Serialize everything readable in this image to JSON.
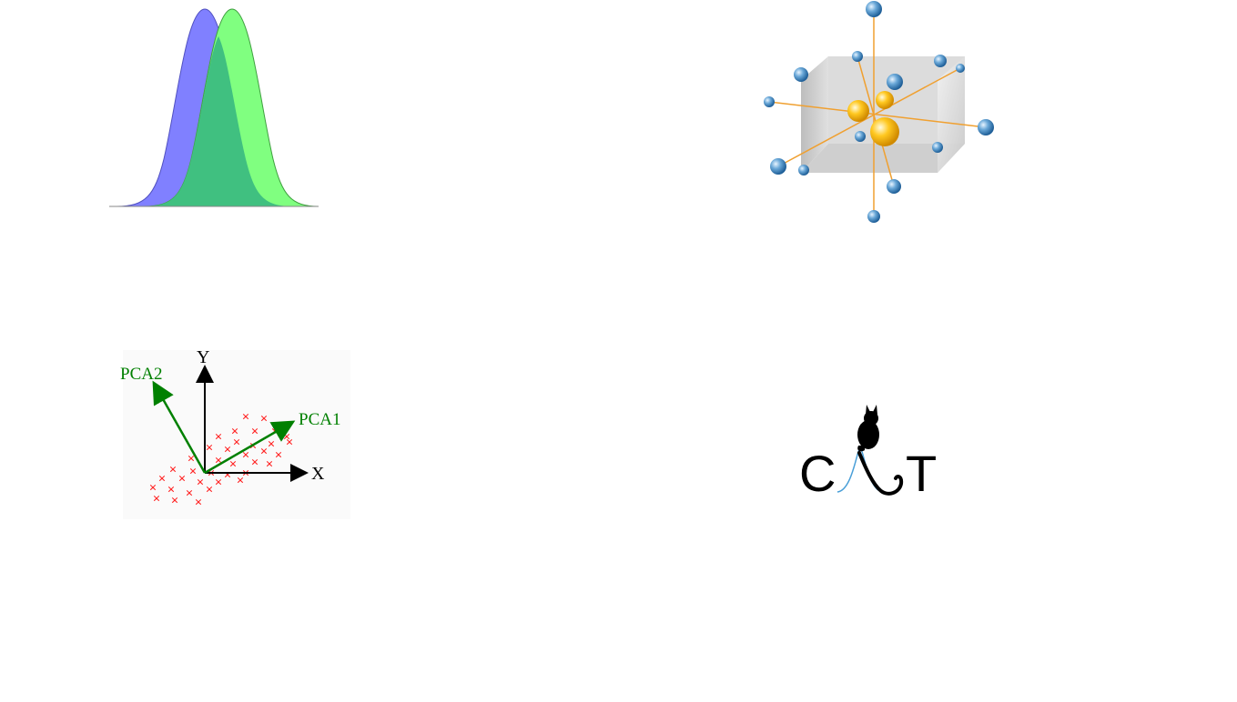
{
  "slide": {
    "background": "#ffffff"
  },
  "gaussian_figure": {
    "icon": "overlapping-gaussians-icon",
    "colors": {
      "blue_curve": "#8080ff",
      "green_curve": "#80ff80",
      "overlap": "#40c080"
    }
  },
  "crystal_figure": {
    "icon": "crystal-lattice-cube-icon",
    "colors": {
      "ball": "#4a90c8",
      "core": "#f5b800",
      "axis": "#f0a030",
      "cube": "#d8d8d8"
    }
  },
  "pca_figure": {
    "icon": "pca-axes-scatter-icon",
    "labels": {
      "y_axis": "Y",
      "x_axis": "X",
      "pca1": "PCA1",
      "pca2": "PCA2"
    },
    "colors": {
      "axes": "#000000",
      "components": "#008000",
      "points": "#ff2020"
    }
  },
  "cat_logo": {
    "icon": "cat-silhouette-icon",
    "letters": {
      "left": "C",
      "right": "T"
    },
    "colors": {
      "text": "#000000",
      "curve": "#4a9fd8"
    }
  }
}
